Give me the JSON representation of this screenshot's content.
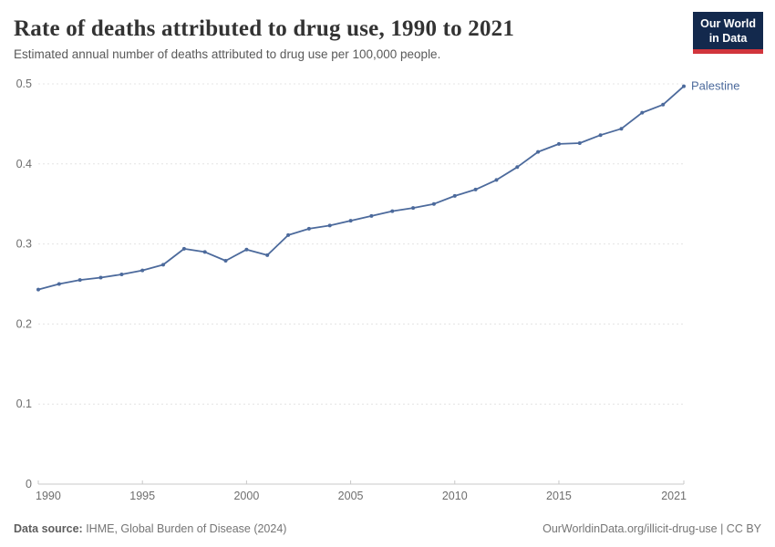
{
  "header": {
    "title": "Rate of deaths attributed to drug use, 1990 to 2021",
    "subtitle": "Estimated annual number of deaths attributed to drug use per 100,000 people."
  },
  "logo": {
    "line1": "Our World",
    "line2": "in Data",
    "bg_color": "#13294d",
    "bar_color": "#d1353c"
  },
  "entity_label": "Palestine",
  "footer": {
    "source_label": "Data source:",
    "source_text": " IHME, Global Burden of Disease (2024)",
    "right_text": "OurWorldinData.org/illicit-drug-use | CC BY"
  },
  "chart_data": {
    "type": "line",
    "title": "Rate of deaths attributed to drug use, 1990 to 2021",
    "xlabel": "",
    "ylabel": "",
    "x_range": [
      1990,
      2021
    ],
    "ylim": [
      0,
      0.5
    ],
    "grid": "horizontal-dashed",
    "legend_position": "end-of-line-label",
    "x_ticks": [
      1990,
      1995,
      2000,
      2005,
      2010,
      2015,
      2021
    ],
    "y_ticks": [
      0,
      0.1,
      0.2,
      0.3,
      0.4,
      0.5
    ],
    "series": [
      {
        "name": "Palestine",
        "color": "#4C6A9C",
        "x": [
          1990,
          1991,
          1992,
          1993,
          1994,
          1995,
          1996,
          1997,
          1998,
          1999,
          2000,
          2001,
          2002,
          2003,
          2004,
          2005,
          2006,
          2007,
          2008,
          2009,
          2010,
          2011,
          2012,
          2013,
          2014,
          2015,
          2016,
          2017,
          2018,
          2019,
          2020,
          2021
        ],
        "values": [
          0.243,
          0.25,
          0.255,
          0.258,
          0.262,
          0.267,
          0.274,
          0.294,
          0.29,
          0.279,
          0.293,
          0.286,
          0.311,
          0.319,
          0.323,
          0.329,
          0.335,
          0.341,
          0.345,
          0.35,
          0.36,
          0.368,
          0.38,
          0.396,
          0.415,
          0.425,
          0.426,
          0.436,
          0.444,
          0.464,
          0.474,
          0.497
        ]
      }
    ]
  }
}
